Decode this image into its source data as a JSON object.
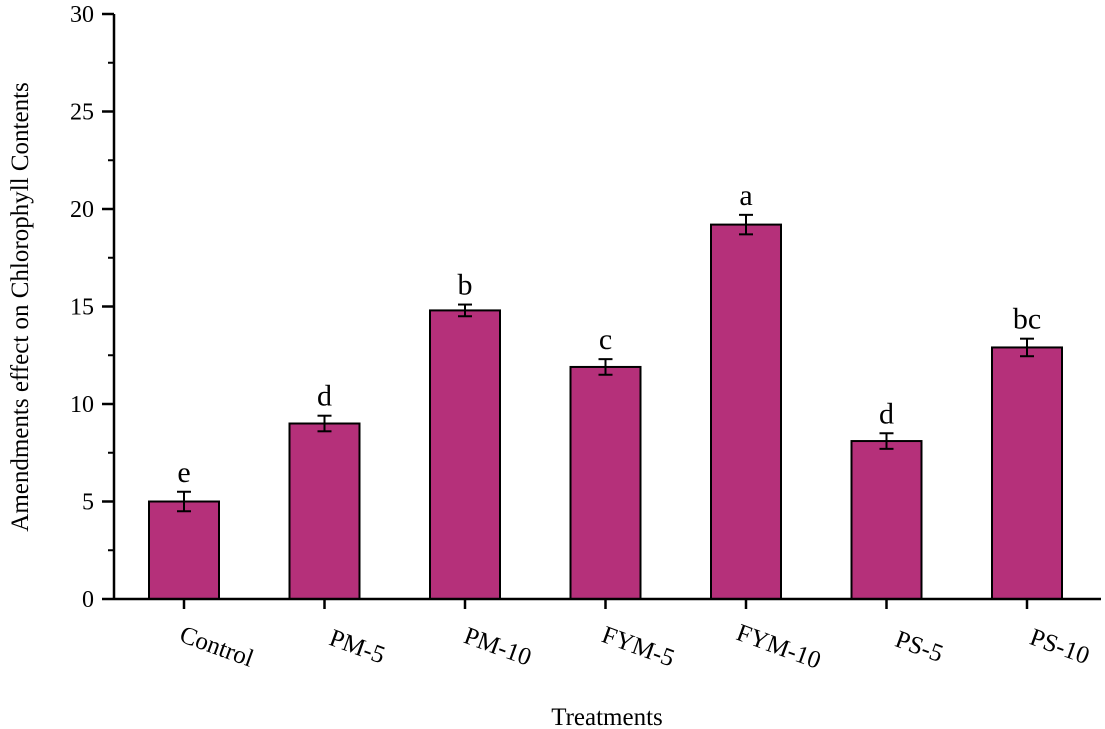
{
  "chart_data": {
    "type": "bar",
    "title": "",
    "xlabel": "Treatments",
    "ylabel": "Amendments effect on Chlorophyll Contents",
    "categories": [
      "Control",
      "PM-5",
      "PM-10",
      "FYM-5",
      "FYM-10",
      "PS-5",
      "PS-10"
    ],
    "values": [
      5.0,
      9.0,
      14.8,
      11.9,
      19.2,
      8.1,
      12.9
    ],
    "errors": [
      0.5,
      0.4,
      0.3,
      0.4,
      0.5,
      0.4,
      0.45
    ],
    "significance_letters": [
      "e",
      "d",
      "b",
      "c",
      "a",
      "d",
      "bc"
    ],
    "ylim": [
      0,
      30
    ],
    "yticks": [
      0,
      5,
      10,
      15,
      20,
      25,
      30
    ],
    "grid": false,
    "bar_color": "#b5307a",
    "axis_color": "#000000"
  }
}
